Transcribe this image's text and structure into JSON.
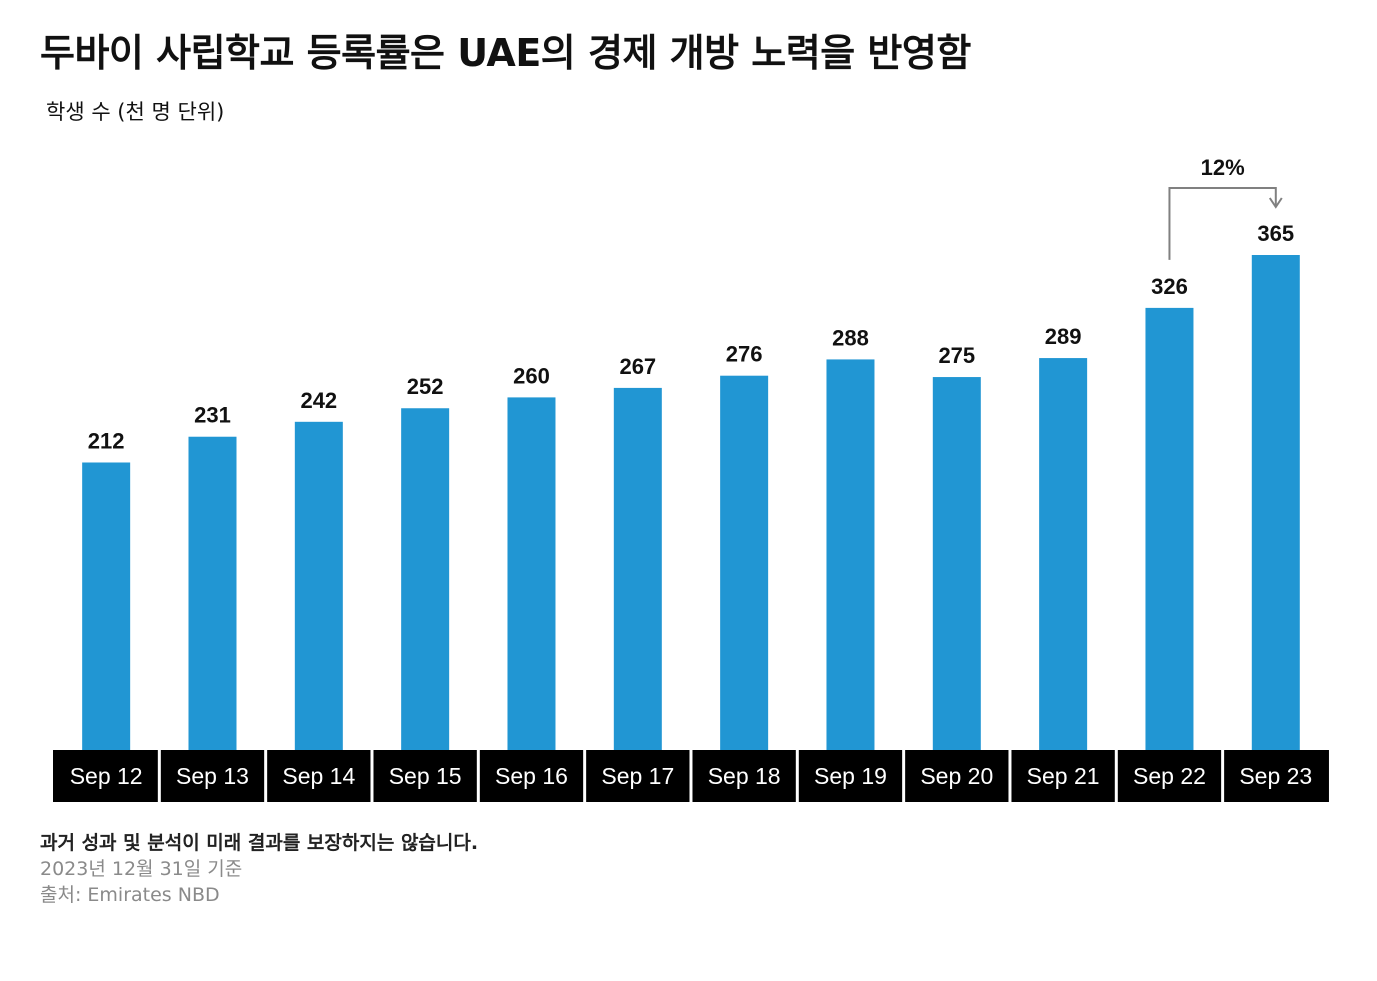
{
  "title": "두바이 사립학교 등록률은 UAE의 경제 개방 노력을 반영함",
  "subtitle": "학생 수 (천 명 단위)",
  "footer": {
    "disclaimer": "과거 성과 및 분석이 미래 결과를 보장하지는 않습니다.",
    "date": "2023년 12월 31일 기준",
    "source": "출처: Emirates NBD"
  },
  "colors": {
    "bar": "#2196D3",
    "axis_band": "#000000",
    "axis_text": "#ffffff",
    "label": "#111111",
    "annotation": "#808080"
  },
  "chart_data": {
    "type": "bar",
    "title": "두바이 사립학교 등록률은 UAE의 경제 개방 노력을 반영함",
    "ylabel": "학생 수 (천 명 단위)",
    "xlabel": "",
    "categories": [
      "Sep 12",
      "Sep 13",
      "Sep 14",
      "Sep 15",
      "Sep 16",
      "Sep 17",
      "Sep 18",
      "Sep 19",
      "Sep 20",
      "Sep 21",
      "Sep 22",
      "Sep 23"
    ],
    "values": [
      212,
      231,
      242,
      252,
      260,
      267,
      276,
      288,
      275,
      289,
      326,
      365
    ],
    "data_labels": [
      "212",
      "231",
      "242",
      "252",
      "260",
      "267",
      "276",
      "288",
      "275",
      "289",
      "326",
      "365"
    ],
    "ylim": [
      0,
      365
    ],
    "grid": false,
    "legend": "none",
    "annotations": [
      {
        "text": "12%",
        "from": "Sep 22",
        "to": "Sep 23"
      }
    ]
  }
}
